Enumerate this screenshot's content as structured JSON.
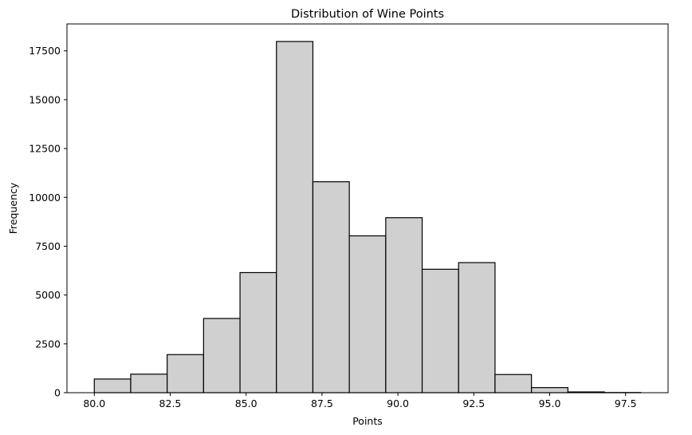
{
  "chart_data": {
    "type": "bar",
    "title": "Distribution of Wine Points",
    "xlabel": "Points",
    "ylabel": "Frequency",
    "bin_edges": [
      80.0,
      81.2,
      82.4,
      83.6,
      84.8,
      86.0,
      87.2,
      88.4,
      89.6,
      90.8,
      92.0,
      93.2,
      94.4,
      95.6,
      96.8,
      98.0
    ],
    "values": [
      700,
      950,
      1950,
      3800,
      6150,
      17980,
      10800,
      8030,
      8960,
      6320,
      6660,
      930,
      260,
      40,
      10
    ],
    "xlim": [
      79.1,
      98.9
    ],
    "ylim": [
      0,
      18879
    ],
    "xticks": [
      80.0,
      82.5,
      85.0,
      87.5,
      90.0,
      92.5,
      95.0,
      97.5
    ],
    "xtick_labels": [
      "80.0",
      "82.5",
      "85.0",
      "87.5",
      "90.0",
      "92.5",
      "95.0",
      "97.5"
    ],
    "yticks": [
      0,
      2500,
      5000,
      7500,
      10000,
      12500,
      15000,
      17500
    ],
    "ytick_labels": [
      "0",
      "2500",
      "5000",
      "7500",
      "10000",
      "12500",
      "15000",
      "17500"
    ],
    "bar_color": "#d0d0d0",
    "edge_color": "#000000",
    "grid": false,
    "legend": false
  }
}
